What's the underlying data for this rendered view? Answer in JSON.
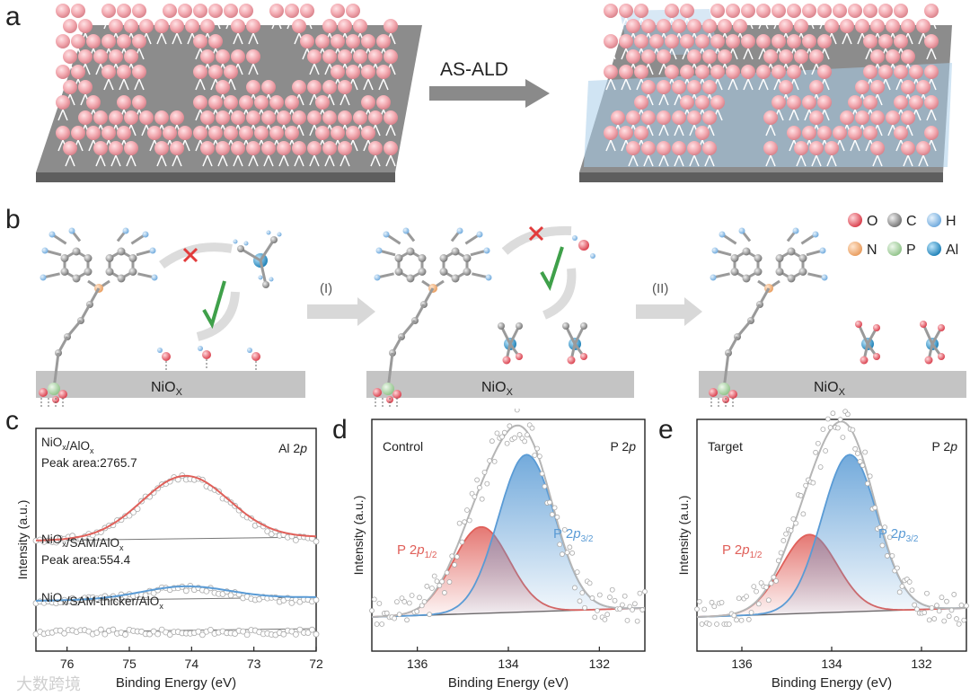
{
  "figure": {
    "panel_labels": [
      "a",
      "b",
      "c",
      "d",
      "e"
    ]
  },
  "panel_a": {
    "arrow_label": "AS-ALD"
  },
  "panel_b": {
    "substrate_label": "NiO",
    "substrate_sub": "X",
    "step_labels": [
      "(I)",
      "(II)"
    ],
    "legend": [
      {
        "symbol": "O",
        "color": "#e0505a"
      },
      {
        "symbol": "C",
        "color": "#8a8a8a"
      },
      {
        "symbol": "H",
        "color": "#9cc6ee"
      },
      {
        "symbol": "N",
        "color": "#f3b07a"
      },
      {
        "symbol": "P",
        "color": "#a9d3a2"
      },
      {
        "symbol": "Al",
        "color": "#2a93c8"
      }
    ]
  },
  "chart_data": [
    {
      "panel": "c",
      "type": "line",
      "title": "Al 2p",
      "xlabel": "Binding Energy (eV)",
      "ylabel": "Intensity (a.u.)",
      "xlim": [
        76.5,
        72
      ],
      "xticks": [
        76,
        75,
        74,
        73,
        72
      ],
      "series": [
        {
          "name": "NiOx/AlOx",
          "annotation": "Peak area:2765.7",
          "color": "#e0605a",
          "center": 74.1,
          "height": 1.0
        },
        {
          "name": "NiOx/SAM/AlOx",
          "annotation": "Peak area:554.4",
          "color": "#5a9bd5",
          "center": 74.1,
          "height": 0.2
        },
        {
          "name": "NiOx/SAM-thicker/AlOx",
          "annotation": "",
          "color": "#999999",
          "center": 74.1,
          "height": 0.0
        }
      ]
    },
    {
      "panel": "d",
      "type": "area",
      "title": "P 2p",
      "corner_label": "Control",
      "xlabel": "Binding Energy (eV)",
      "ylabel": "Intensity (a.u.)",
      "xlim": [
        137,
        131
      ],
      "xticks": [
        136,
        134,
        132
      ],
      "series": [
        {
          "name": "P 2p1/2",
          "center": 134.6,
          "height": 0.55,
          "color": "#e0605a"
        },
        {
          "name": "P 2p3/2",
          "center": 133.6,
          "height": 1.0,
          "color": "#5a9bd5"
        }
      ]
    },
    {
      "panel": "e",
      "type": "area",
      "title": "P 2p",
      "corner_label": "Target",
      "xlabel": "Binding Energy (eV)",
      "ylabel": "Intensity (a.u.)",
      "xlim": [
        137,
        131
      ],
      "xticks": [
        136,
        134,
        132
      ],
      "series": [
        {
          "name": "P 2p1/2",
          "center": 134.5,
          "height": 0.5,
          "color": "#e0605a"
        },
        {
          "name": "P 2p3/2",
          "center": 133.6,
          "height": 1.0,
          "color": "#5a9bd5"
        }
      ]
    }
  ],
  "watermark": "大数跨境"
}
